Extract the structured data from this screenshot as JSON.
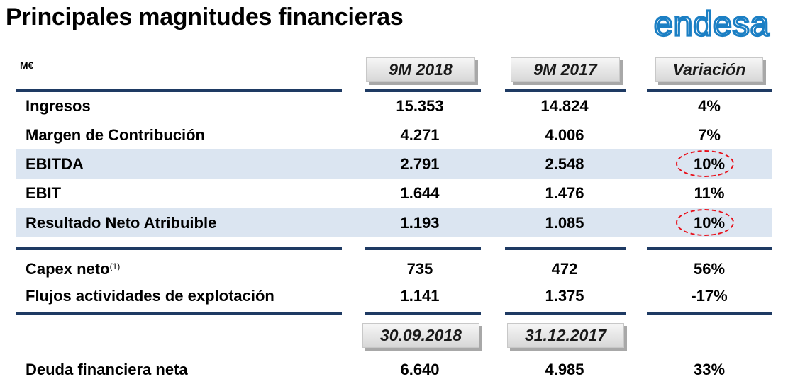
{
  "title": "Principales magnitudes financieras",
  "logo_text": "endesa",
  "unit": "M€",
  "colors": {
    "rule": "#1e3a63",
    "band": "#dbe5f1",
    "highlight": "#e8101a",
    "logo": "#1b7fc4"
  },
  "headers": {
    "col1": "9M 2018",
    "col2": "9M 2017",
    "col3": "Variación"
  },
  "rows": [
    {
      "label": "Ingresos",
      "v1": "15.353",
      "v2": "14.824",
      "var": "4%"
    },
    {
      "label": "Margen de Contribución",
      "v1": "4.271",
      "v2": "4.006",
      "var": "7%"
    },
    {
      "label": "EBITDA",
      "v1": "2.791",
      "v2": "2.548",
      "var": "10%"
    },
    {
      "label": "EBIT",
      "v1": "1.644",
      "v2": "1.476",
      "var": "11%"
    },
    {
      "label": "Resultado Neto Atribuible",
      "v1": "1.193",
      "v2": "1.085",
      "var": "10%"
    }
  ],
  "rows2": [
    {
      "label": "Capex neto",
      "note": "(1)",
      "v1": "735",
      "v2": "472",
      "var": "56%"
    },
    {
      "label": "Flujos actividades de explotación",
      "v1": "1.141",
      "v2": "1.375",
      "var": "-17%"
    }
  ],
  "date_headers": {
    "col1": "30.09.2018",
    "col2": "31.12.2017"
  },
  "debt": {
    "label": "Deuda financiera neta",
    "v1": "6.640",
    "v2": "4.985",
    "var": "33%"
  }
}
